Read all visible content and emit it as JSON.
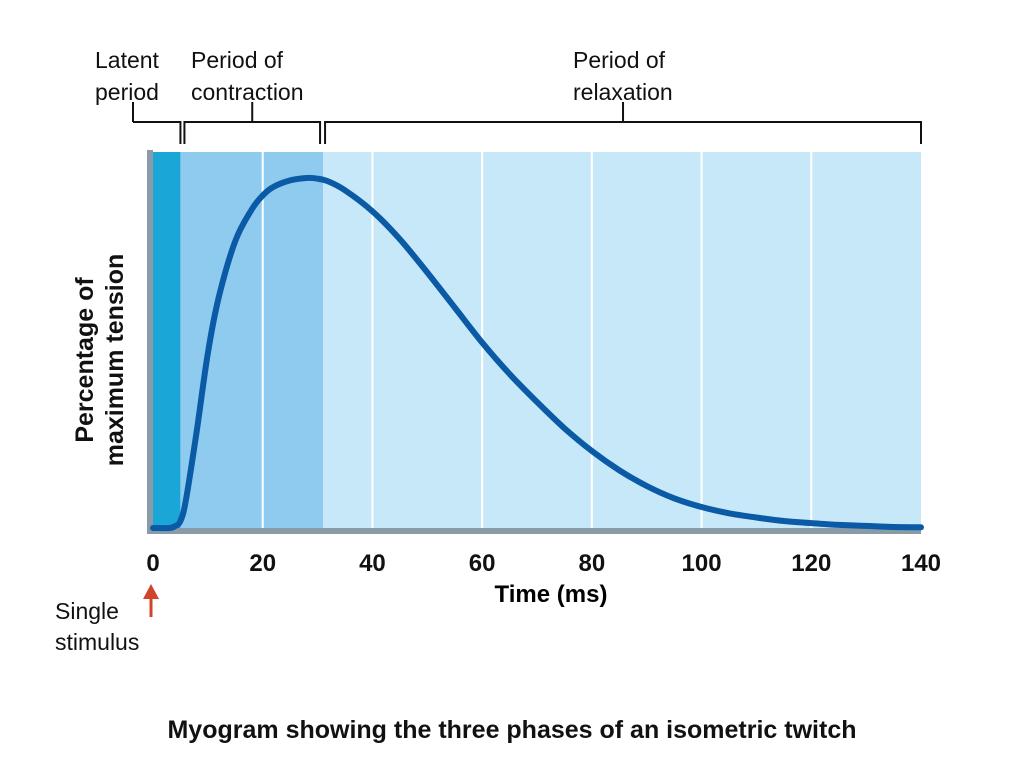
{
  "chart_data": {
    "type": "line",
    "title": "",
    "xlabel": "Time (ms)",
    "ylabel": [
      "Percentage of",
      "maximum tension"
    ],
    "xlim": [
      0,
      140
    ],
    "xticks": [
      "0",
      "20",
      "40",
      "60",
      "80",
      "100",
      "120",
      "140"
    ],
    "series": [
      {
        "x": [
          0,
          3,
          4,
          5,
          6,
          8,
          10,
          12,
          15,
          18,
          20,
          22,
          25,
          28,
          30,
          32,
          35,
          40,
          45,
          50,
          55,
          60,
          65,
          70,
          75,
          80,
          85,
          90,
          95,
          100,
          105,
          110,
          115,
          120,
          125,
          130,
          135,
          140
        ],
        "y": [
          0,
          0,
          0.5,
          2,
          8,
          28,
          50,
          66,
          82,
          91,
          95,
          97.5,
          99.3,
          100,
          99.8,
          99,
          96.5,
          90.5,
          82.5,
          73,
          63,
          53,
          44,
          36,
          28.5,
          22,
          16.5,
          12,
          8.5,
          6,
          4.2,
          3,
          2,
          1.4,
          0.9,
          0.6,
          0.3,
          0.2
        ]
      }
    ],
    "phases": [
      {
        "label": [
          "Latent",
          "period"
        ],
        "start": 0,
        "end": 5
      },
      {
        "label": [
          "Period of",
          "contraction"
        ],
        "start": 5,
        "end": 31
      },
      {
        "label": [
          "Period of",
          "relaxation"
        ],
        "start": 31,
        "end": 140
      }
    ],
    "colors": {
      "latent": "#1aa6d6",
      "contraction": "#8ecbef",
      "relaxation": "#c7e8f8",
      "curve": "#0a5aa6",
      "axis": "#8a9ba8",
      "stimulus_arrow": "#d0442c"
    }
  },
  "annotation": {
    "stimulus": [
      "Single",
      "stimulus"
    ]
  },
  "caption": "Myogram showing the three phases of an isometric twitch"
}
